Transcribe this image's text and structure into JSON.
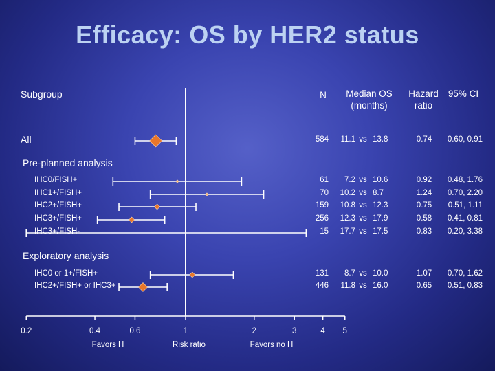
{
  "slide": {
    "title": "Efficacy: OS by HER2 status",
    "colors": {
      "background": "#2c3497",
      "title": "#bcd2f2",
      "marker_large": "#e8762a",
      "marker_small": "#f3b074",
      "line": "#ffffff"
    }
  },
  "headers": {
    "subgroup": "Subgroup",
    "n": "N",
    "median_line1": "Median OS",
    "median_line2": "(months)",
    "hr_line1": "Hazard",
    "hr_line2": "ratio",
    "ci": "95% CI"
  },
  "sections": {
    "preplanned": "Pre-planned analysis",
    "exploratory": "Exploratory analysis"
  },
  "vs_word": "vs",
  "axis": {
    "ticks": [
      "0.2",
      "0.4",
      "0.6",
      "1",
      "2",
      "3",
      "4",
      "5"
    ],
    "favors_h": "Favors H",
    "risk_ratio": "Risk ratio",
    "favors_no_h": "Favors no H"
  },
  "chart_data": {
    "type": "forest",
    "scale": "log",
    "reference_line": 1,
    "xticks": [
      0.2,
      0.4,
      0.6,
      1,
      2,
      3,
      4,
      5
    ],
    "xlabel": "Risk ratio",
    "rows": [
      {
        "label": "All",
        "n": "584",
        "med_h": "11.1",
        "med_noh": "13.8",
        "hr": "0.74",
        "ci": "0.60, 0.91",
        "hr_value": 0.74,
        "ci_low": 0.6,
        "ci_high": 0.91,
        "marker": "large"
      },
      {
        "label": "IHC0/FISH+",
        "n": "61",
        "med_h": "7.2",
        "med_noh": "10.6",
        "hr": "0.92",
        "ci": "0.48, 1.76",
        "hr_value": 0.92,
        "ci_low": 0.48,
        "ci_high": 1.76,
        "marker": "tiny"
      },
      {
        "label": "IHC1+/FISH+",
        "n": "70",
        "med_h": "10.2",
        "med_noh": "8.7",
        "hr": "1.24",
        "ci": "0.70, 2.20",
        "hr_value": 1.24,
        "ci_low": 0.7,
        "ci_high": 2.2,
        "marker": "tiny"
      },
      {
        "label": "IHC2+/FISH+",
        "n": "159",
        "med_h": "10.8",
        "med_noh": "12.3",
        "hr": "0.75",
        "ci": "0.51, 1.11",
        "hr_value": 0.75,
        "ci_low": 0.51,
        "ci_high": 1.11,
        "marker": "small"
      },
      {
        "label": "IHC3+/FISH+",
        "n": "256",
        "med_h": "12.3",
        "med_noh": "17.9",
        "hr": "0.58",
        "ci": "0.41, 0.81",
        "hr_value": 0.58,
        "ci_low": 0.41,
        "ci_high": 0.81,
        "marker": "small"
      },
      {
        "label": "IHC3+/FISH-",
        "n": "15",
        "med_h": "17.7",
        "med_noh": "17.5",
        "hr": "0.83",
        "ci": "0.20, 3.38",
        "hr_value": 0.83,
        "ci_low": 0.2,
        "ci_high": 3.38,
        "marker": "none"
      },
      {
        "label": "IHC0 or 1+/FISH+",
        "n": "131",
        "med_h": "8.7",
        "med_noh": "10.0",
        "hr": "1.07",
        "ci": "0.70, 1.62",
        "hr_value": 1.07,
        "ci_low": 0.7,
        "ci_high": 1.62,
        "marker": "small"
      },
      {
        "label": "IHC2+/FISH+ or IHC3+",
        "n": "446",
        "med_h": "11.8",
        "med_noh": "16.0",
        "hr": "0.65",
        "ci": "0.51, 0.83",
        "hr_value": 0.65,
        "ci_low": 0.51,
        "ci_high": 0.83,
        "marker": "medium"
      }
    ]
  }
}
